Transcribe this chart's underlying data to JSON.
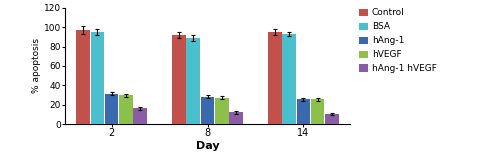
{
  "days": [
    2,
    8,
    14
  ],
  "series": {
    "Control": {
      "values": [
        97,
        92,
        95
      ],
      "errors": [
        4,
        3,
        3
      ],
      "color": "#C1514A"
    },
    "BSA": {
      "values": [
        95,
        89,
        93
      ],
      "errors": [
        3,
        3,
        2
      ],
      "color": "#4BBFCE"
    },
    "hAng-1": {
      "values": [
        31.5,
        28,
        25.5
      ],
      "errors": [
        2,
        1.5,
        1.5
      ],
      "color": "#3A6AAD"
    },
    "hVEGF": {
      "values": [
        29.6,
        27,
        25.5
      ],
      "errors": [
        1.5,
        1.5,
        1.5
      ],
      "color": "#8DC04A"
    },
    "hAng-1 hVEGF": {
      "values": [
        16.44,
        12,
        10.42
      ],
      "errors": [
        1.5,
        1.5,
        0.8
      ],
      "color": "#8B5CA6"
    }
  },
  "ylabel": "% apoptosis",
  "xlabel": "Day",
  "ylim": [
    0,
    120
  ],
  "yticks": [
    0,
    20,
    40,
    60,
    80,
    100,
    120
  ],
  "xtick_labels": [
    "2",
    "8",
    "14"
  ],
  "legend_labels": [
    "Control",
    "BSA",
    "hAng-1",
    "hVEGF",
    "hAng-1 hVEGF"
  ],
  "bar_width": 0.055,
  "group_centers": [
    0.18,
    0.55,
    0.92
  ],
  "figsize": [
    5.0,
    1.59
  ],
  "dpi": 100,
  "background_color": "#FFFFFF"
}
